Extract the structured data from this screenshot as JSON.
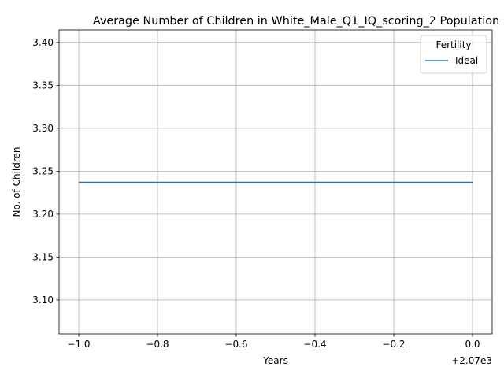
{
  "chart_data": {
    "type": "line",
    "title": "Average Number of Children in White_Male_Q1_IQ_scoring_2 Population",
    "xlabel": "Years",
    "ylabel": "No. of Children",
    "x_offset_label": "+2.07e3",
    "x_ticks": [
      "−1.0",
      "−0.8",
      "−0.6",
      "−0.4",
      "−0.2",
      "0.0"
    ],
    "y_ticks": [
      "3.10",
      "3.15",
      "3.20",
      "3.25",
      "3.30",
      "3.35",
      "3.40"
    ],
    "xlim": [
      2068.95,
      2070.05
    ],
    "ylim": [
      3.0605,
      3.4145
    ],
    "grid": true,
    "legend": {
      "title": "Fertility",
      "placement": "top-right"
    },
    "series": [
      {
        "name": "Ideal",
        "color": "#1f77b4",
        "x": [
          2069,
          2070
        ],
        "y": [
          3.237,
          3.237
        ]
      }
    ]
  }
}
